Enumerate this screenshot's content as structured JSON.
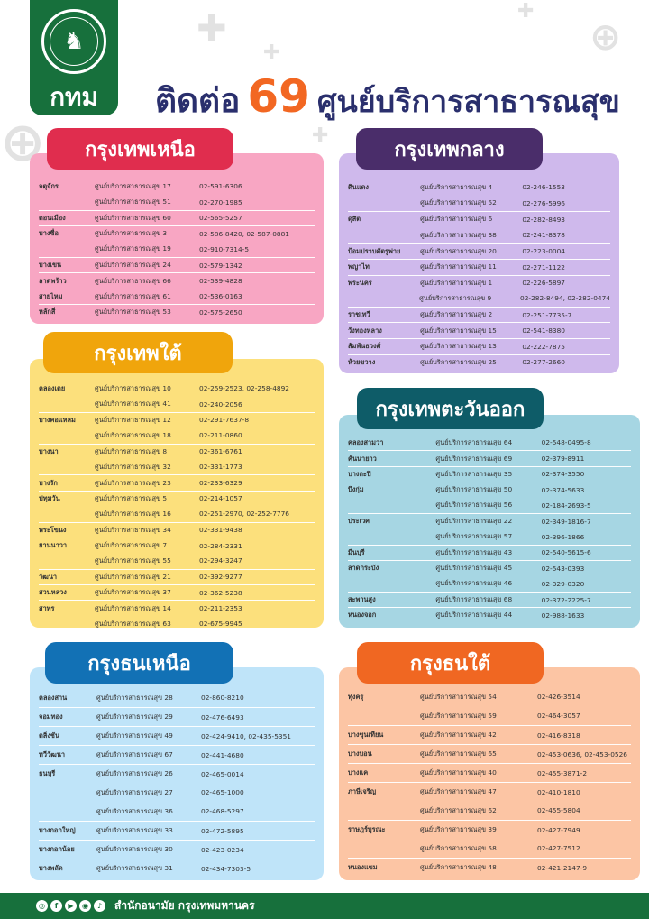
{
  "logo": {
    "org": "กทม"
  },
  "headline": {
    "part1": "ติดต่อ",
    "number": "69",
    "part2": "ศูนย์บริการสาธารณสุข"
  },
  "regions": [
    {
      "name": "กรุงเทพเหนือ",
      "rows": [
        {
          "district": "จตุจักร",
          "center": "ศูนย์บริการสาธารณสุข 17",
          "phone": "02-591-6306"
        },
        {
          "district": "",
          "center": "ศูนย์บริการสาธารณสุข 51",
          "phone": "02-270-1985"
        },
        {
          "district": "ดอนเมือง",
          "center": "ศูนย์บริการสาธารณสุข 60",
          "phone": "02-565-5257"
        },
        {
          "district": "บางซื่อ",
          "center": "ศูนย์บริการสาธารณสุข 3",
          "phone": "02-586-8420, 02-587-0881"
        },
        {
          "district": "",
          "center": "ศูนย์บริการสาธารณสุข 19",
          "phone": "02-910-7314-5"
        },
        {
          "district": "บางเขน",
          "center": "ศูนย์บริการสาธารณสุข 24",
          "phone": "02-579-1342"
        },
        {
          "district": "ลาดพร้าว",
          "center": "ศูนย์บริการสาธารณสุข 66",
          "phone": "02-539-4828"
        },
        {
          "district": "สายไหม",
          "center": "ศูนย์บริการสาธารณสุข 61",
          "phone": "02-536-0163"
        },
        {
          "district": "หลักสี่",
          "center": "ศูนย์บริการสาธารณสุข 53",
          "phone": "02-575-2650"
        }
      ]
    },
    {
      "name": "กรุงเทพกลาง",
      "rows": [
        {
          "district": "ดินแดง",
          "center": "ศูนย์บริการสาธารณสุข 4",
          "phone": "02-246-1553"
        },
        {
          "district": "",
          "center": "ศูนย์บริการสาธารณสุข 52",
          "phone": "02-276-5996"
        },
        {
          "district": "ดุสิต",
          "center": "ศูนย์บริการสาธารณสุข 6",
          "phone": "02-282-8493"
        },
        {
          "district": "",
          "center": "ศูนย์บริการสาธารณสุข 38",
          "phone": "02-241-8378"
        },
        {
          "district": "ป้อมปราบศัตรูพ่าย",
          "center": "ศูนย์บริการสาธารณสุข 20",
          "phone": "02-223-0004"
        },
        {
          "district": "พญาไท",
          "center": "ศูนย์บริการสาธารณสุข 11",
          "phone": "02-271-1122"
        },
        {
          "district": "พระนคร",
          "center": "ศูนย์บริการสาธารณสุข 1",
          "phone": "02-226-5897"
        },
        {
          "district": "",
          "center": "ศูนย์บริการสาธารณสุข 9",
          "phone": "02-282-8494, 02-282-0474"
        },
        {
          "district": "ราชเทวี",
          "center": "ศูนย์บริการสาธารณสุข 2",
          "phone": "02-251-7735-7"
        },
        {
          "district": "วังทองหลาง",
          "center": "ศูนย์บริการสาธารณสุข 15",
          "phone": "02-541-8380"
        },
        {
          "district": "สัมพันธวงศ์",
          "center": "ศูนย์บริการสาธารณสุข 13",
          "phone": "02-222-7875"
        },
        {
          "district": "ห้วยขวาง",
          "center": "ศูนย์บริการสาธารณสุข 25",
          "phone": "02-277-2660"
        }
      ]
    },
    {
      "name": "กรุงเทพใต้",
      "rows": [
        {
          "district": "คลองเตย",
          "center": "ศูนย์บริการสาธารณสุข 10",
          "phone": "02-259-2523, 02-258-4892"
        },
        {
          "district": "",
          "center": "ศูนย์บริการสาธารณสุข 41",
          "phone": "02-240-2056"
        },
        {
          "district": "บางคอแหลม",
          "center": "ศูนย์บริการสาธารณสุข 12",
          "phone": "02-291-7637-8"
        },
        {
          "district": "",
          "center": "ศูนย์บริการสาธารณสุข 18",
          "phone": "02-211-0860"
        },
        {
          "district": "บางนา",
          "center": "ศูนย์บริการสาธารณสุข 8",
          "phone": "02-361-6761"
        },
        {
          "district": "",
          "center": "ศูนย์บริการสาธารณสุข 32",
          "phone": "02-331-1773"
        },
        {
          "district": "บางรัก",
          "center": "ศูนย์บริการสาธารณสุข 23",
          "phone": "02-233-6329"
        },
        {
          "district": "ปทุมวัน",
          "center": "ศูนย์บริการสาธารณสุข 5",
          "phone": "02-214-1057"
        },
        {
          "district": "",
          "center": "ศูนย์บริการสาธารณสุข 16",
          "phone": "02-251-2970, 02-252-7776"
        },
        {
          "district": "พระโขนง",
          "center": "ศูนย์บริการสาธารณสุข 34",
          "phone": "02-331-9438"
        },
        {
          "district": "ยานนาวา",
          "center": "ศูนย์บริการสาธารณสุข 7",
          "phone": "02-284-2331"
        },
        {
          "district": "",
          "center": "ศูนย์บริการสาธารณสุข 55",
          "phone": "02-294-3247"
        },
        {
          "district": "วัฒนา",
          "center": "ศูนย์บริการสาธารณสุข 21",
          "phone": "02-392-9277"
        },
        {
          "district": "สวนหลวง",
          "center": "ศูนย์บริการสาธารณสุข 37",
          "phone": "02-362-5238"
        },
        {
          "district": "สาทร",
          "center": "ศูนย์บริการสาธารณสุข 14",
          "phone": "02-211-2353"
        },
        {
          "district": "",
          "center": "ศูนย์บริการสาธารณสุข 63",
          "phone": "02-675-9945"
        }
      ]
    },
    {
      "name": "กรุงเทพตะวันออก",
      "rows": [
        {
          "district": "คลองสามวา",
          "center": "ศูนย์บริการสาธารณสุข 64",
          "phone": "02-548-0495-8"
        },
        {
          "district": "คันนายาว",
          "center": "ศูนย์บริการสาธารณสุข 69",
          "phone": "02-379-8911"
        },
        {
          "district": "บางกะปิ",
          "center": "ศูนย์บริการสาธารณสุข 35",
          "phone": "02-374-3550"
        },
        {
          "district": "บึงกุ่ม",
          "center": "ศูนย์บริการสาธารณสุข 50",
          "phone": "02-374-5633"
        },
        {
          "district": "",
          "center": "ศูนย์บริการสาธารณสุข 56",
          "phone": "02-184-2693-5"
        },
        {
          "district": "ประเวศ",
          "center": "ศูนย์บริการสาธารณสุข 22",
          "phone": "02-349-1816-7"
        },
        {
          "district": "",
          "center": "ศูนย์บริการสาธารณสุข 57",
          "phone": "02-396-1866"
        },
        {
          "district": "มีนบุรี",
          "center": "ศูนย์บริการสาธารณสุข 43",
          "phone": "02-540-5615-6"
        },
        {
          "district": "ลาดกระบัง",
          "center": "ศูนย์บริการสาธารณสุข 45",
          "phone": "02-543-0393"
        },
        {
          "district": "",
          "center": "ศูนย์บริการสาธารณสุข 46",
          "phone": "02-329-0320"
        },
        {
          "district": "สะพานสูง",
          "center": "ศูนย์บริการสาธารณสุข 68",
          "phone": "02-372-2225-7"
        },
        {
          "district": "หนองจอก",
          "center": "ศูนย์บริการสาธารณสุข 44",
          "phone": "02-988-1633"
        }
      ]
    },
    {
      "name": "กรุงธนเหนือ",
      "rows": [
        {
          "district": "คลองสาน",
          "center": "ศูนย์บริการสาธารณสุข 28",
          "phone": "02-860-8210"
        },
        {
          "district": "จอมทอง",
          "center": "ศูนย์บริการสาธารณสุข 29",
          "phone": "02-476-6493"
        },
        {
          "district": "ตลิ่งชัน",
          "center": "ศูนย์บริการสาธารณสุข 49",
          "phone": "02-424-9410, 02-435-5351"
        },
        {
          "district": "ทวีวัฒนา",
          "center": "ศูนย์บริการสาธารณสุข 67",
          "phone": "02-441-4680"
        },
        {
          "district": "ธนบุรี",
          "center": "ศูนย์บริการสาธารณสุข 26",
          "phone": "02-465-0014"
        },
        {
          "district": "",
          "center": "ศูนย์บริการสาธารณสุข 27",
          "phone": "02-465-1000"
        },
        {
          "district": "",
          "center": "ศูนย์บริการสาธารณสุข 36",
          "phone": "02-468-5297"
        },
        {
          "district": "บางกอกใหญ่",
          "center": "ศูนย์บริการสาธารณสุข 33",
          "phone": "02-472-5895"
        },
        {
          "district": "บางกอกน้อย",
          "center": "ศูนย์บริการสาธารณสุข 30",
          "phone": "02-423-0234"
        },
        {
          "district": "บางพลัด",
          "center": "ศูนย์บริการสาธารณสุข 31",
          "phone": "02-434-7303-5"
        }
      ]
    },
    {
      "name": "กรุงธนใต้",
      "rows": [
        {
          "district": "ทุ่งครุ",
          "center": "ศูนย์บริการสาธารณสุข 54",
          "phone": "02-426-3514"
        },
        {
          "district": "",
          "center": "ศูนย์บริการสาธารณสุข 59",
          "phone": "02-464-3057"
        },
        {
          "district": "บางขุนเทียน",
          "center": "ศูนย์บริการสาธารณสุข 42",
          "phone": "02-416-8318"
        },
        {
          "district": "บางบอน",
          "center": "ศูนย์บริการสาธารณสุข 65",
          "phone": "02-453-0636, 02-453-0526"
        },
        {
          "district": "บางแค",
          "center": "ศูนย์บริการสาธารณสุข 40",
          "phone": "02-455-3871-2"
        },
        {
          "district": "ภาษีเจริญ",
          "center": "ศูนย์บริการสาธารณสุข 47",
          "phone": "02-410-1810"
        },
        {
          "district": "",
          "center": "ศูนย์บริการสาธารณสุข 62",
          "phone": "02-455-5804"
        },
        {
          "district": "ราษฎร์บูรณะ",
          "center": "ศูนย์บริการสาธารณสุข 39",
          "phone": "02-427-7949"
        },
        {
          "district": "",
          "center": "ศูนย์บริการสาธารณสุข 58",
          "phone": "02-427-7512"
        },
        {
          "district": "หนองแขม",
          "center": "ศูนย์บริการสาธารณสุข 48",
          "phone": "02-421-2147-9"
        }
      ]
    }
  ],
  "footer": {
    "org": "สำนักอนามัย กรุงเทพมหานคร"
  },
  "social_icons": [
    "instagram-icon",
    "facebook-icon",
    "youtube-icon",
    "website-icon",
    "tiktok-icon"
  ]
}
